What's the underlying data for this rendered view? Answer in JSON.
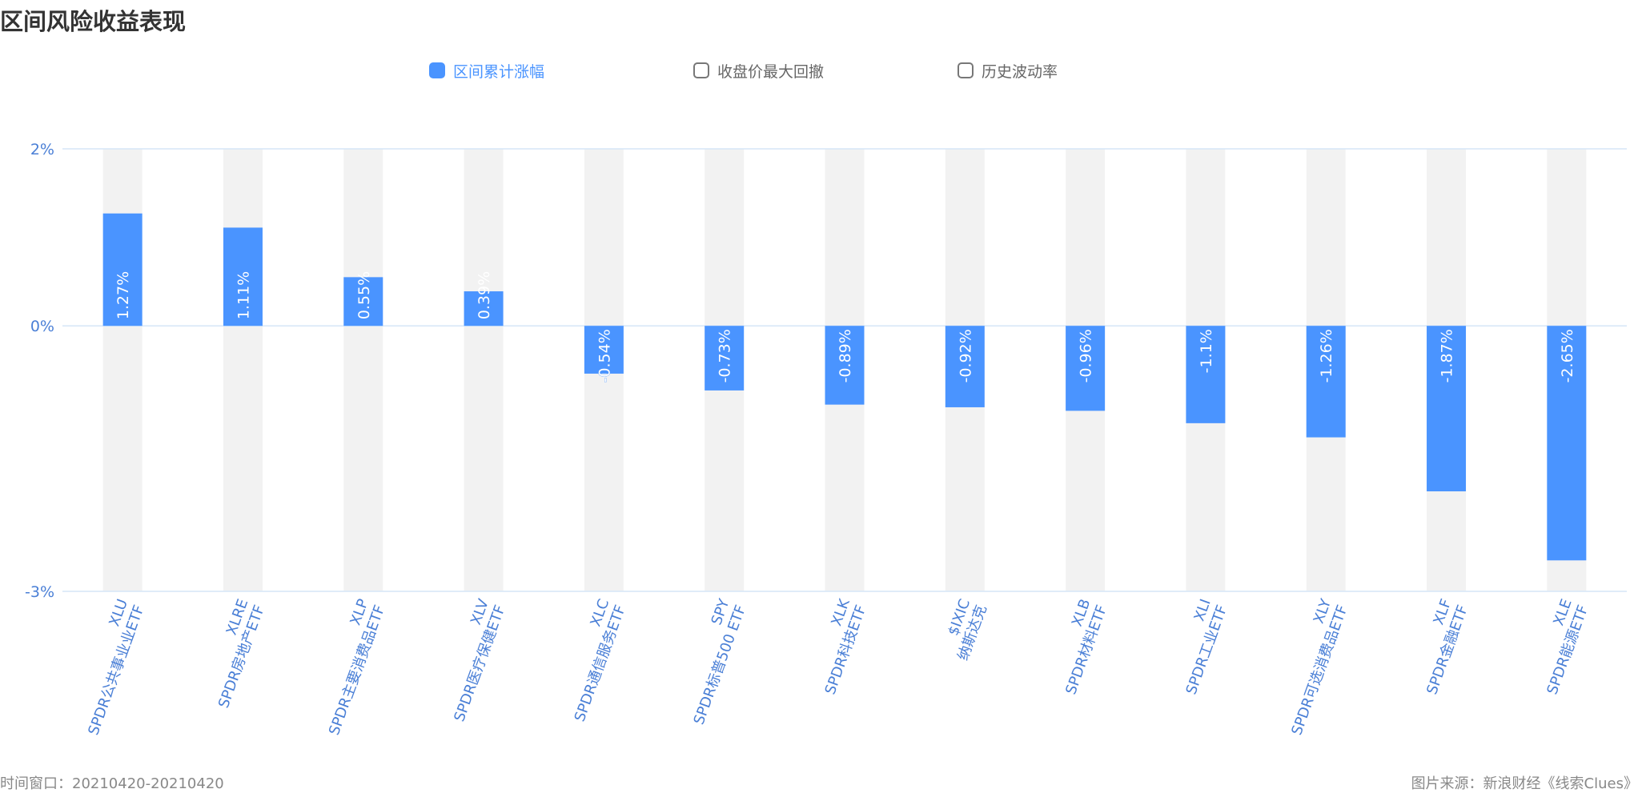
{
  "title": "区间风险收益表现",
  "legend": [
    {
      "label": "区间累计涨幅",
      "active": true
    },
    {
      "label": "收盘价最大回撤",
      "active": false
    },
    {
      "label": "历史波动率",
      "active": false
    }
  ],
  "footer": {
    "left": "时间窗口：20210420-20210420",
    "right": "图片来源：新浪财经《线索Clues》"
  },
  "colors": {
    "bar": "#4a94ff",
    "band": "#f2f2f2",
    "axis_text": "#4a7fd6",
    "grid": "#d6e6f7"
  },
  "chart_data": {
    "type": "bar",
    "ylim": [
      -3,
      2
    ],
    "yticks": [
      "2%",
      "0%",
      "-3%"
    ],
    "grid": true,
    "categories": [
      {
        "code": "XLU",
        "name": "SPDR公共事业业ETF"
      },
      {
        "code": "XLRE",
        "name": "SPDR房地产ETF"
      },
      {
        "code": "XLP",
        "name": "SPDR主要消费品ETF"
      },
      {
        "code": "XLV",
        "name": "SPDR医疗保健ETF"
      },
      {
        "code": "XLC",
        "name": "SPDR通信服务ETF"
      },
      {
        "code": "SPY",
        "name": "SPDR标普500 ETF"
      },
      {
        "code": "XLK",
        "name": "SPDR科技ETF"
      },
      {
        "code": "$IXIC",
        "name": "纳斯达克"
      },
      {
        "code": "XLB",
        "name": "SPDR材料ETF"
      },
      {
        "code": "XLI",
        "name": "SPDR工业ETF"
      },
      {
        "code": "XLY",
        "name": "SPDR可选消费品ETF"
      },
      {
        "code": "XLF",
        "name": "SPDR金融ETF"
      },
      {
        "code": "XLE",
        "name": "SPDR能源ETF"
      }
    ],
    "series": [
      {
        "name": "区间累计涨幅",
        "values": [
          1.27,
          1.11,
          0.55,
          0.39,
          -0.54,
          -0.73,
          -0.89,
          -0.92,
          -0.96,
          -1.1,
          -1.26,
          -1.87,
          -2.65
        ],
        "labels": [
          "1.27%",
          "1.11%",
          "0.55%",
          "0.39%",
          "-0.54%",
          "-0.73%",
          "-0.89%",
          "-0.92%",
          "-0.96%",
          "-1.1%",
          "-1.26%",
          "-1.87%",
          "-2.65%"
        ]
      }
    ]
  }
}
